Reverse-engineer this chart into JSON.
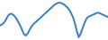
{
  "y": [
    82,
    83,
    85,
    88,
    92,
    95,
    96,
    95,
    93,
    90,
    86,
    82,
    77,
    72,
    70,
    72,
    76,
    80,
    83,
    85,
    87,
    89,
    91,
    93,
    95,
    97,
    99,
    101,
    103,
    105,
    107,
    108,
    109,
    109,
    108,
    107,
    105,
    103,
    100,
    96,
    91,
    84,
    75,
    68,
    72,
    78,
    84,
    89,
    92,
    93,
    94,
    95,
    96,
    97,
    97,
    96,
    95,
    94,
    93,
    92
  ],
  "line_color": "#3a7ebf",
  "bg_color": "#ffffff",
  "linewidth": 1.4
}
